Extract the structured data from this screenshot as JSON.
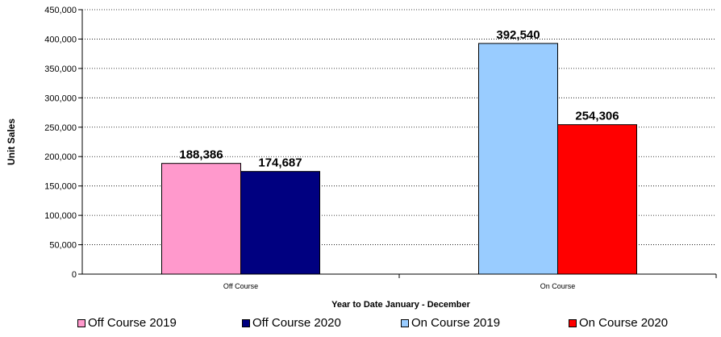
{
  "chart_data": {
    "type": "bar",
    "categories": [
      "Off Course",
      "On Course"
    ],
    "series": [
      {
        "name": "Off Course 2019",
        "color": "#FF99CC",
        "values": [
          188386,
          null
        ],
        "labels": [
          "188,386",
          null
        ]
      },
      {
        "name": "Off Course 2020",
        "color": "#000080",
        "values": [
          174687,
          null
        ],
        "labels": [
          "174,687",
          null
        ]
      },
      {
        "name": "On Course 2019",
        "color": "#99CCFF",
        "values": [
          null,
          392540
        ],
        "labels": [
          null,
          "392,540"
        ]
      },
      {
        "name": "On Course 2020",
        "color": "#FF0000",
        "values": [
          null,
          254306
        ],
        "labels": [
          null,
          "254,306"
        ]
      }
    ],
    "title": "",
    "xlabel": "Year to Date January - December",
    "ylabel": "Unit Sales",
    "ylim": [
      0,
      450000
    ],
    "yticks": [
      0,
      50000,
      100000,
      150000,
      200000,
      250000,
      300000,
      350000,
      400000,
      450000
    ],
    "ytick_labels": [
      "0",
      "50,000",
      "100,000",
      "150,000",
      "200,000",
      "250,000",
      "300,000",
      "350,000",
      "400,000",
      "450,000"
    ],
    "grid": true,
    "legend": "bottom"
  }
}
